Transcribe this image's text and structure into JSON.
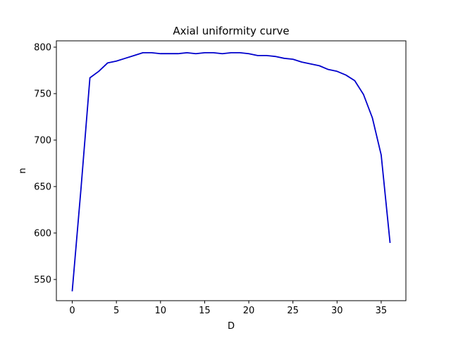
{
  "chart_data": {
    "type": "line",
    "title": "Axial uniformity curve",
    "xlabel": "D",
    "ylabel": "n",
    "xlim": [
      -1.8,
      37.8
    ],
    "ylim": [
      527.2,
      806.8
    ],
    "xticks": [
      0,
      5,
      10,
      15,
      20,
      25,
      30,
      35
    ],
    "yticks": [
      550,
      600,
      650,
      700,
      750,
      800
    ],
    "grid": false,
    "series": [
      {
        "color": "#0000cc",
        "x": [
          0,
          1,
          2,
          3,
          4,
          5,
          6,
          7,
          8,
          9,
          10,
          11,
          12,
          13,
          14,
          15,
          16,
          17,
          18,
          19,
          20,
          21,
          22,
          23,
          24,
          25,
          26,
          27,
          28,
          29,
          30,
          31,
          32,
          33,
          34,
          35,
          36
        ],
        "y": [
          538,
          649,
          767,
          774,
          783,
          785,
          788,
          791,
          794,
          794,
          793,
          793,
          793,
          794,
          793,
          794,
          794,
          793,
          794,
          794,
          793,
          791,
          791,
          790,
          788,
          787,
          784,
          782,
          780,
          776,
          774,
          770,
          764,
          749,
          724,
          684,
          590
        ]
      }
    ]
  }
}
